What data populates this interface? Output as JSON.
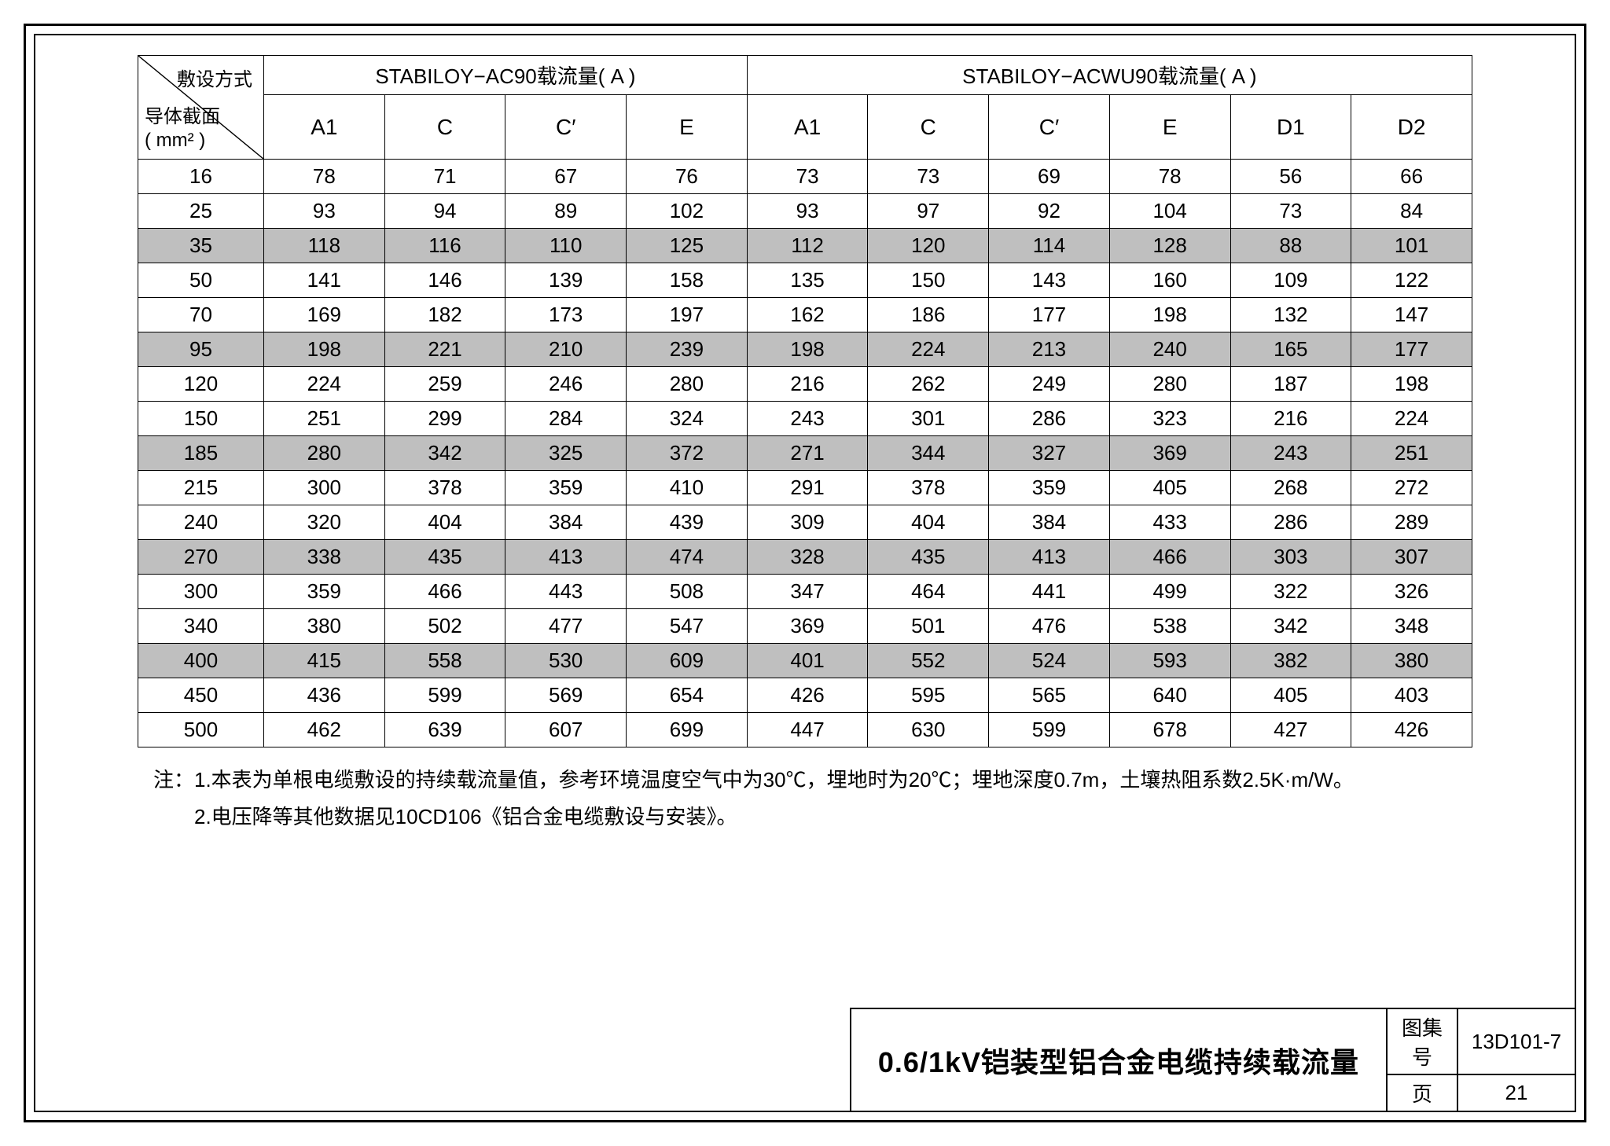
{
  "corner": {
    "top": "敷设方式",
    "bot": "导体截面<br>( mm² )"
  },
  "group_headers": [
    {
      "label": "STABILOY−AC90载流量( A )",
      "span": 4
    },
    {
      "label": "STABILOY−ACWU90载流量( A )",
      "span": 6
    }
  ],
  "sub_headers": [
    "A1",
    "C",
    "C′",
    "E",
    "A1",
    "C",
    "C′",
    "E",
    "D1",
    "D2"
  ],
  "rows": [
    {
      "k": "16",
      "v": [
        "78",
        "71",
        "67",
        "76",
        "73",
        "73",
        "69",
        "78",
        "56",
        "66"
      ],
      "shade": false
    },
    {
      "k": "25",
      "v": [
        "93",
        "94",
        "89",
        "102",
        "93",
        "97",
        "92",
        "104",
        "73",
        "84"
      ],
      "shade": false
    },
    {
      "k": "35",
      "v": [
        "118",
        "116",
        "110",
        "125",
        "112",
        "120",
        "114",
        "128",
        "88",
        "101"
      ],
      "shade": true
    },
    {
      "k": "50",
      "v": [
        "141",
        "146",
        "139",
        "158",
        "135",
        "150",
        "143",
        "160",
        "109",
        "122"
      ],
      "shade": false
    },
    {
      "k": "70",
      "v": [
        "169",
        "182",
        "173",
        "197",
        "162",
        "186",
        "177",
        "198",
        "132",
        "147"
      ],
      "shade": false
    },
    {
      "k": "95",
      "v": [
        "198",
        "221",
        "210",
        "239",
        "198",
        "224",
        "213",
        "240",
        "165",
        "177"
      ],
      "shade": true
    },
    {
      "k": "120",
      "v": [
        "224",
        "259",
        "246",
        "280",
        "216",
        "262",
        "249",
        "280",
        "187",
        "198"
      ],
      "shade": false
    },
    {
      "k": "150",
      "v": [
        "251",
        "299",
        "284",
        "324",
        "243",
        "301",
        "286",
        "323",
        "216",
        "224"
      ],
      "shade": false
    },
    {
      "k": "185",
      "v": [
        "280",
        "342",
        "325",
        "372",
        "271",
        "344",
        "327",
        "369",
        "243",
        "251"
      ],
      "shade": true
    },
    {
      "k": "215",
      "v": [
        "300",
        "378",
        "359",
        "410",
        "291",
        "378",
        "359",
        "405",
        "268",
        "272"
      ],
      "shade": false
    },
    {
      "k": "240",
      "v": [
        "320",
        "404",
        "384",
        "439",
        "309",
        "404",
        "384",
        "433",
        "286",
        "289"
      ],
      "shade": false
    },
    {
      "k": "270",
      "v": [
        "338",
        "435",
        "413",
        "474",
        "328",
        "435",
        "413",
        "466",
        "303",
        "307"
      ],
      "shade": true
    },
    {
      "k": "300",
      "v": [
        "359",
        "466",
        "443",
        "508",
        "347",
        "464",
        "441",
        "499",
        "322",
        "326"
      ],
      "shade": false
    },
    {
      "k": "340",
      "v": [
        "380",
        "502",
        "477",
        "547",
        "369",
        "501",
        "476",
        "538",
        "342",
        "348"
      ],
      "shade": false
    },
    {
      "k": "400",
      "v": [
        "415",
        "558",
        "530",
        "609",
        "401",
        "552",
        "524",
        "593",
        "382",
        "380"
      ],
      "shade": true
    },
    {
      "k": "450",
      "v": [
        "436",
        "599",
        "569",
        "654",
        "426",
        "595",
        "565",
        "640",
        "405",
        "403"
      ],
      "shade": false
    },
    {
      "k": "500",
      "v": [
        "462",
        "639",
        "607",
        "699",
        "447",
        "630",
        "599",
        "678",
        "427",
        "426"
      ],
      "shade": false
    }
  ],
  "notes": [
    "注：1.本表为单根电缆敷设的持续载流量值，参考环境温度空气中为30℃，埋地时为20℃；埋地深度0.7m，土壤热阻系数2.5K·m/W。",
    "　　2.电压降等其他数据见10CD106《铝合金电缆敷设与安装》。"
  ],
  "titleblock": {
    "main": "0.6/1kV铠装型铝合金电缆持续载流量",
    "rows": [
      {
        "lab": "图集号",
        "val": "13D101-7"
      },
      {
        "lab": "页",
        "val": "21"
      }
    ]
  },
  "style": {
    "shade_color": "#bfbfbf",
    "border_color": "#000000",
    "font_size_cell": 26,
    "font_size_title": 36
  }
}
